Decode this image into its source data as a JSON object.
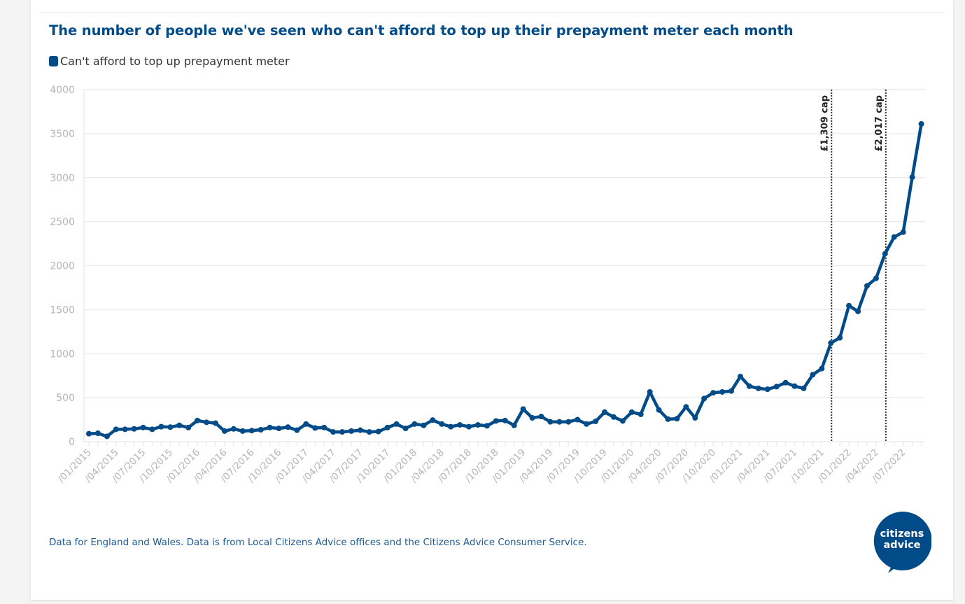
{
  "chart_data": {
    "type": "line",
    "title": "The number of people we've seen who can't afford to top up their prepayment meter each month",
    "xlabel": "",
    "ylabel": "",
    "ylim": [
      0,
      4000
    ],
    "yticks": [
      0,
      500,
      1000,
      1500,
      2000,
      2500,
      3000,
      3500,
      4000
    ],
    "grid": true,
    "legend_position": "top-left",
    "x_start": "01/2015",
    "x_end": "09/2022",
    "x_tick_labels": [
      "/01/2015",
      "/04/2015",
      "/07/2015",
      "/10/2015",
      "/01/2016",
      "/04/2016",
      "/07/2016",
      "/10/2016",
      "/01/2017",
      "/04/2017",
      "/07/2017",
      "/10/2017",
      "/01/2018",
      "/04/2018",
      "/07/2018",
      "/10/2018",
      "/01/2019",
      "/04/2019",
      "/07/2019",
      "/10/2019",
      "/01/2020",
      "/04/2020",
      "/07/2020",
      "/10/2020",
      "/01/2021",
      "/04/2021",
      "/07/2021",
      "/10/2021",
      "/01/2022",
      "/04/2022",
      "/07/2022"
    ],
    "series": [
      {
        "name": "Can't afford to top up prepayment meter",
        "color": "#004b88",
        "values": [
          90,
          95,
          60,
          140,
          140,
          145,
          160,
          140,
          170,
          165,
          185,
          160,
          240,
          220,
          210,
          120,
          145,
          120,
          125,
          135,
          160,
          150,
          165,
          130,
          200,
          155,
          160,
          110,
          110,
          120,
          130,
          110,
          115,
          160,
          200,
          150,
          200,
          185,
          245,
          200,
          170,
          190,
          170,
          190,
          180,
          235,
          240,
          185,
          370,
          270,
          285,
          225,
          225,
          225,
          250,
          200,
          230,
          335,
          280,
          235,
          335,
          310,
          565,
          360,
          255,
          260,
          395,
          270,
          490,
          555,
          565,
          575,
          740,
          630,
          605,
          595,
          625,
          670,
          630,
          605,
          760,
          830,
          1120,
          1180,
          1545,
          1480,
          1770,
          1855,
          2135,
          2325,
          2380,
          3005,
          3610
        ]
      }
    ],
    "annotations": [
      {
        "label": "£1,309 cap",
        "month_index": 82,
        "style": "dotted-vertical-line"
      },
      {
        "label": "£2,017 cap",
        "month_index": 88,
        "style": "dotted-vertical-line"
      }
    ]
  },
  "legend": {
    "label": "Can't afford to top up prepayment meter"
  },
  "footnote": "Data for England and Wales. Data is from Local Citizens Advice offices and the Citizens Advice Consumer Service.",
  "logo": {
    "line1": "citizens",
    "line2": "advice"
  },
  "colors": {
    "brand": "#004b88",
    "grid": "#ececec",
    "axis_text": "#b5b5b5"
  }
}
